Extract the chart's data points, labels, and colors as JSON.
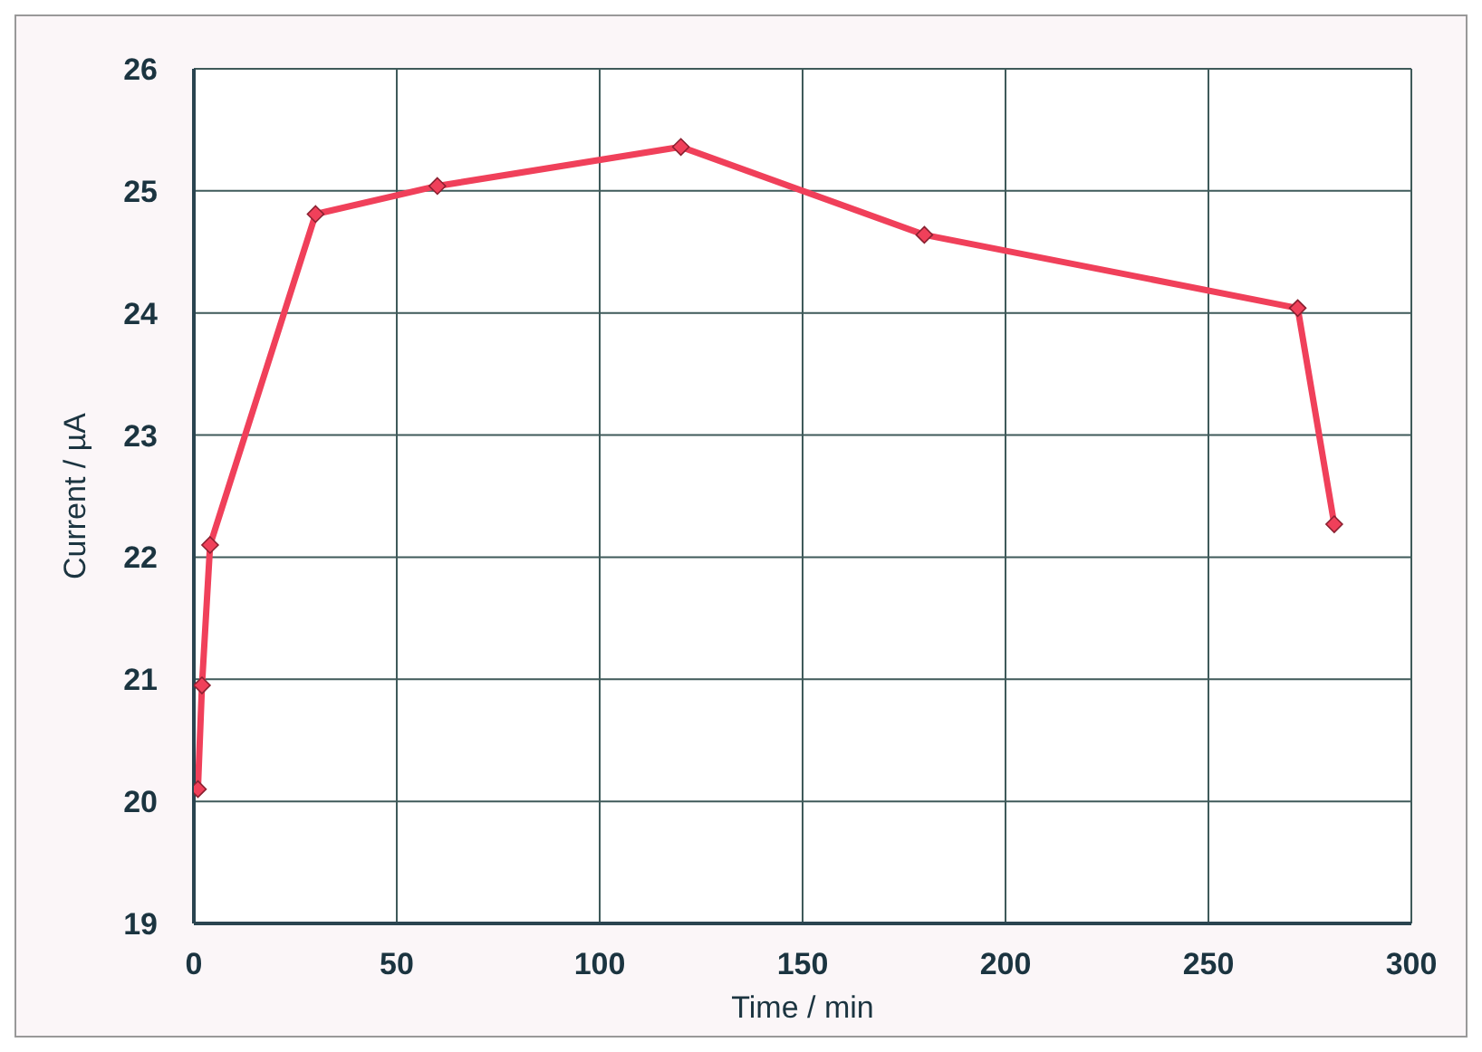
{
  "chart_data": {
    "type": "line",
    "xlabel": "Time / min",
    "ylabel": "Current / µA",
    "x": [
      1,
      2,
      4,
      30,
      60,
      120,
      180,
      272,
      281
    ],
    "series": [
      {
        "color": "#f0405a",
        "values": [
          20.1,
          20.95,
          22.1,
          24.81,
          25.04,
          25.36,
          24.64,
          24.04,
          22.27
        ]
      }
    ],
    "xlim": [
      0,
      300
    ],
    "xticks": [
      0,
      50,
      100,
      150,
      200,
      250,
      300
    ],
    "ylim": [
      19,
      26
    ],
    "yticks": [
      19,
      20,
      21,
      22,
      23,
      24,
      25,
      26
    ],
    "grid": true,
    "marker": "diamond",
    "line_style": "solid",
    "legend": false
  }
}
